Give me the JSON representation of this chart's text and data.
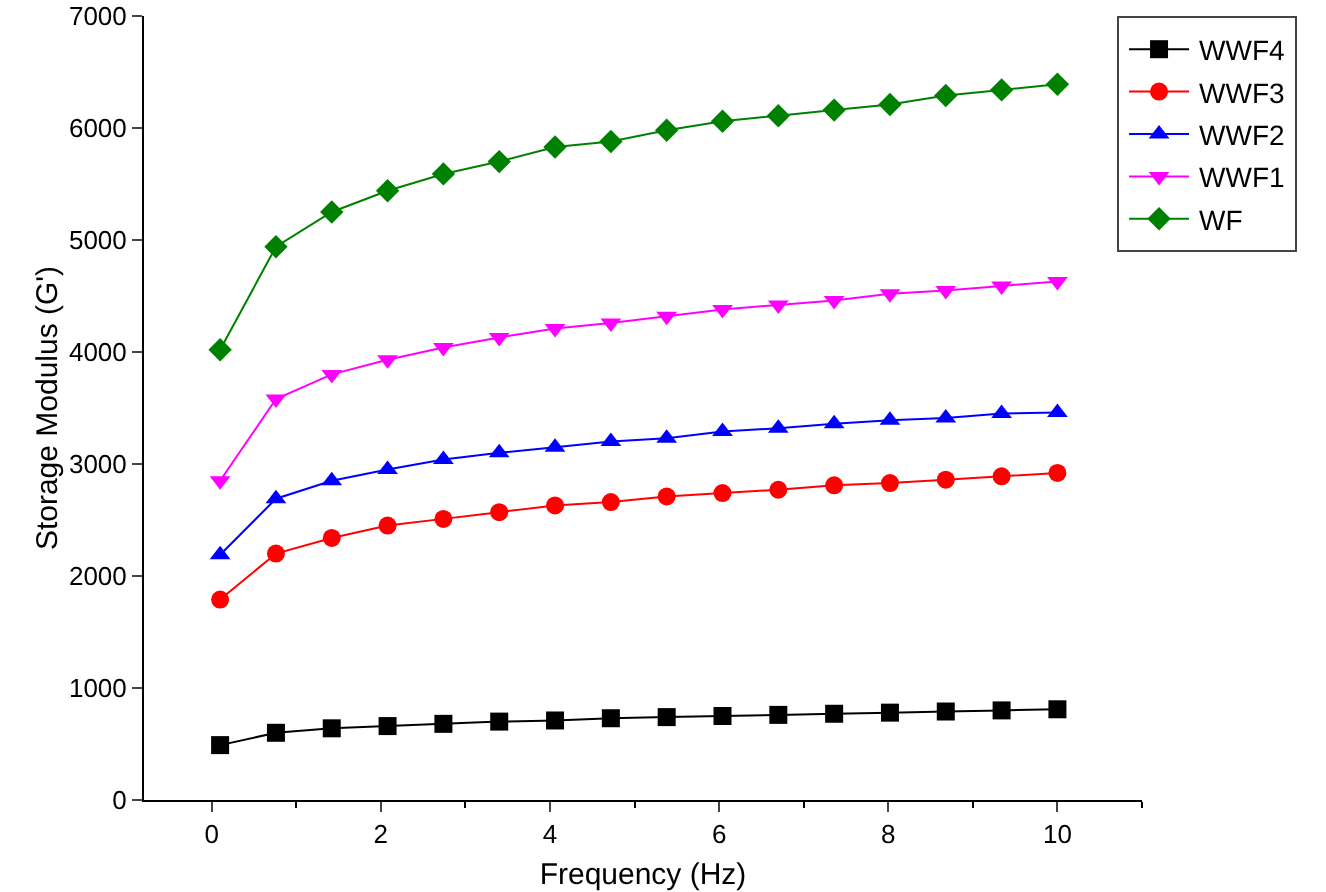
{
  "chart_data": {
    "type": "line",
    "xlabel": "Frequency (Hz)",
    "ylabel": "Storage Modulus (G')",
    "x": [
      0.1,
      0.76,
      1.42,
      2.08,
      2.74,
      3.4,
      4.06,
      4.72,
      5.38,
      6.04,
      6.7,
      7.36,
      8.02,
      8.68,
      9.34,
      10
    ],
    "xlim": [
      -0.8,
      11
    ],
    "xticks": [
      0,
      2,
      4,
      6,
      8,
      10
    ],
    "ylim": [
      0,
      7000
    ],
    "yticks": [
      0,
      1000,
      2000,
      3000,
      4000,
      5000,
      6000,
      7000
    ],
    "grid": false,
    "legend": "top right",
    "line_style": "solid",
    "series": [
      {
        "name": "WWF4",
        "color": "#000000",
        "marker": "square",
        "values": [
          490,
          600,
          640,
          660,
          680,
          700,
          710,
          730,
          740,
          750,
          760,
          770,
          780,
          790,
          800,
          810
        ]
      },
      {
        "name": "WWF3",
        "color": "#ff0000",
        "marker": "circle",
        "values": [
          1790,
          2200,
          2340,
          2450,
          2510,
          2570,
          2630,
          2660,
          2710,
          2740,
          2770,
          2810,
          2830,
          2860,
          2890,
          2920
        ]
      },
      {
        "name": "WWF2",
        "color": "#0000ff",
        "marker": "triangle",
        "values": [
          2190,
          2690,
          2850,
          2950,
          3040,
          3100,
          3150,
          3200,
          3230,
          3290,
          3320,
          3360,
          3390,
          3410,
          3450,
          3460
        ]
      },
      {
        "name": "WWF1",
        "color": "#ff00ff",
        "marker": "triangle-down",
        "values": [
          2850,
          3580,
          3800,
          3930,
          4040,
          4130,
          4210,
          4260,
          4320,
          4380,
          4420,
          4460,
          4520,
          4550,
          4590,
          4630
        ]
      },
      {
        "name": "WF",
        "color": "#008000",
        "marker": "diamond",
        "values": [
          4020,
          4940,
          5250,
          5440,
          5590,
          5700,
          5830,
          5880,
          5980,
          6060,
          6110,
          6160,
          6210,
          6290,
          6340,
          6390
        ]
      }
    ]
  }
}
